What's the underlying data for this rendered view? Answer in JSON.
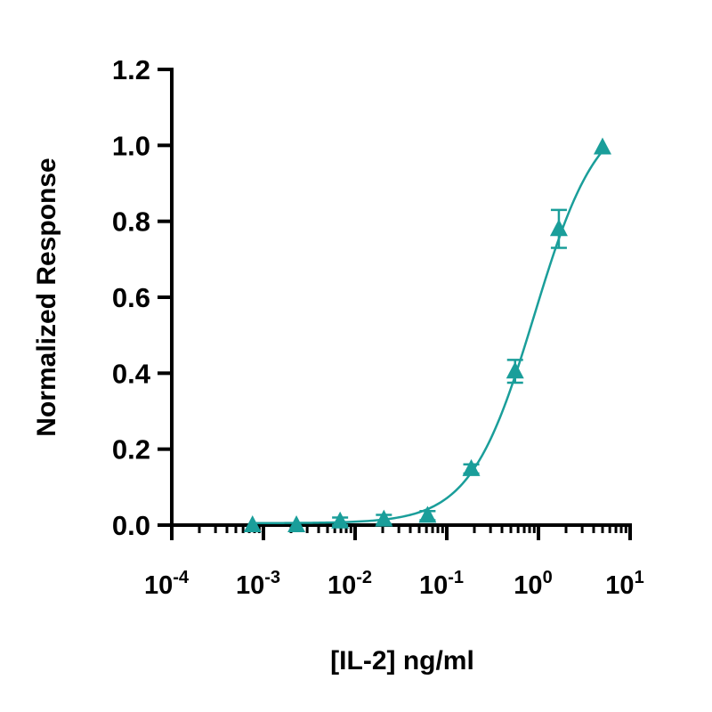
{
  "chart_data": {
    "type": "scatter",
    "title": "",
    "xlabel": "[IL-2] ng/ml",
    "ylabel": "Normalized Response",
    "x_scale": "log",
    "xlim": [
      0.0001,
      10
    ],
    "ylim": [
      0,
      1.2
    ],
    "x_ticks": [
      {
        "value": 0.0001,
        "base": "10",
        "exp": "-4"
      },
      {
        "value": 0.001,
        "base": "10",
        "exp": "-3"
      },
      {
        "value": 0.01,
        "base": "10",
        "exp": "-2"
      },
      {
        "value": 0.1,
        "base": "10",
        "exp": "-1"
      },
      {
        "value": 1,
        "base": "10",
        "exp": "0"
      },
      {
        "value": 10,
        "base": "10",
        "exp": "1"
      }
    ],
    "y_ticks": [
      "0.0",
      "0.2",
      "0.4",
      "0.6",
      "0.8",
      "1.0",
      "1.2"
    ],
    "grid": false,
    "legend": "none",
    "color": "#1a9e9a",
    "marker": "triangle",
    "series": [
      {
        "x": [
          0.00076,
          0.00229,
          0.00686,
          0.0206,
          0.0617,
          0.185,
          0.556,
          1.67,
          5.0
        ],
        "y": [
          0.0,
          0.0,
          0.01,
          0.015,
          0.025,
          0.148,
          0.405,
          0.78,
          0.995
        ],
        "error": [
          0.0,
          0.0,
          0.01,
          0.012,
          0.012,
          0.012,
          0.03,
          0.05,
          0.0
        ]
      }
    ],
    "fit_curve": {
      "bottom": 0.005,
      "top": 1.1,
      "ec50": 0.9,
      "hill": 1.25
    }
  }
}
